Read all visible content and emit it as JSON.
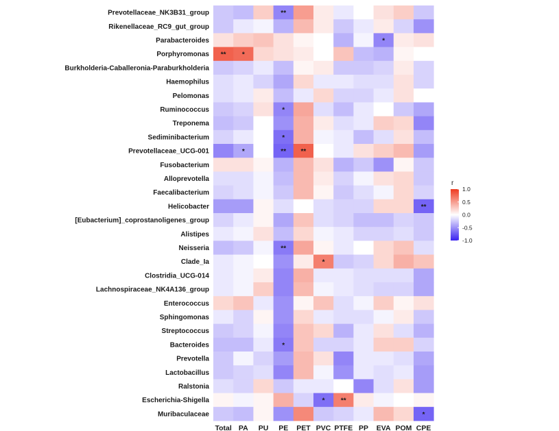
{
  "chart_data": {
    "type": "heatmap",
    "title": "",
    "legend_title": "r",
    "legend_ticks": [
      "1.0",
      "0.5",
      "0.0",
      "-0.5",
      "-1.0"
    ],
    "legend_tick_values": [
      1.0,
      0.5,
      0.0,
      -0.5,
      -1.0
    ],
    "color_range": [
      -1.0,
      1.0
    ],
    "colors": {
      "low": "#3a22f0",
      "mid": "#ffffff",
      "high": "#ee3a20"
    },
    "columns": [
      "Total",
      "PA",
      "PU",
      "PE",
      "PET",
      "PVC",
      "PTFE",
      "PP",
      "EVA",
      "POM",
      "CPE"
    ],
    "rows": [
      "Prevotellaceae_NK3B31_group",
      "Rikenellaceae_RC9_gut_group",
      "Parabacteroides",
      "Porphyromonas",
      "Burkholderia-Caballeronia-Paraburkholderia",
      "Haemophilus",
      "Pelomonas",
      "Ruminococcus",
      "Treponema",
      "Sediminibacterium",
      "Prevotellaceae_UCG-001",
      "Fusobacterium",
      "Alloprevotella",
      "Faecalibacterium",
      "Helicobacter",
      "[Eubacterium]_coprostanoligenes_group",
      "Alistipes",
      "Neisseria",
      "Clade_Ia",
      "Clostridia_UCG-014",
      "Lachnospiraceae_NK4A136_group",
      "Enterococcus",
      "Sphingomonas",
      "Streptococcus",
      "Bacteroides",
      "Prevotella",
      "Lactobacillus",
      "Ralstonia",
      "Escherichia-Shigella",
      "Muribaculaceae"
    ],
    "values": [
      [
        -0.25,
        -0.3,
        0.25,
        -0.55,
        0.5,
        0.1,
        -0.1,
        0.0,
        0.15,
        0.25,
        -0.25
      ],
      [
        -0.25,
        -0.1,
        -0.05,
        -0.35,
        0.35,
        0.1,
        -0.25,
        -0.1,
        0.1,
        -0.2,
        -0.5
      ],
      [
        0.15,
        0.25,
        0.3,
        0.15,
        0.05,
        0.0,
        -0.35,
        -0.05,
        -0.55,
        0.1,
        0.15
      ],
      [
        0.8,
        0.75,
        0.2,
        0.15,
        0.1,
        0.0,
        0.3,
        -0.3,
        -0.35,
        0.05,
        0.0
      ],
      [
        -0.25,
        -0.2,
        -0.1,
        -0.3,
        0.05,
        0.1,
        -0.25,
        -0.25,
        -0.2,
        0.1,
        -0.2
      ],
      [
        -0.15,
        -0.1,
        -0.2,
        -0.4,
        0.2,
        -0.1,
        -0.1,
        -0.15,
        -0.15,
        0.15,
        -0.2
      ],
      [
        -0.15,
        -0.1,
        0.1,
        -0.3,
        -0.1,
        0.2,
        -0.2,
        -0.2,
        -0.1,
        0.15,
        0.0
      ],
      [
        -0.25,
        -0.2,
        0.15,
        -0.55,
        0.45,
        -0.15,
        -0.3,
        -0.1,
        0.0,
        -0.25,
        -0.4
      ],
      [
        -0.3,
        -0.25,
        0.0,
        -0.5,
        0.4,
        0.1,
        -0.15,
        -0.1,
        0.25,
        0.2,
        -0.55
      ],
      [
        -0.2,
        -0.1,
        0.0,
        -0.65,
        0.4,
        -0.05,
        -0.1,
        -0.3,
        -0.15,
        0.15,
        -0.3
      ],
      [
        -0.55,
        -0.4,
        0.0,
        -0.7,
        0.8,
        0.0,
        -0.1,
        0.15,
        0.25,
        0.35,
        -0.45
      ],
      [
        0.15,
        0.15,
        0.05,
        -0.35,
        0.35,
        0.15,
        -0.35,
        -0.25,
        -0.5,
        0.05,
        -0.25
      ],
      [
        -0.15,
        -0.15,
        -0.05,
        -0.3,
        0.35,
        0.1,
        -0.2,
        -0.05,
        0.15,
        0.2,
        -0.25
      ],
      [
        -0.2,
        -0.15,
        -0.05,
        -0.25,
        0.35,
        0.05,
        -0.25,
        -0.15,
        -0.05,
        0.2,
        -0.2
      ],
      [
        -0.45,
        -0.45,
        0.05,
        -0.15,
        0.0,
        -0.15,
        -0.2,
        -0.2,
        0.2,
        0.2,
        -0.7
      ],
      [
        -0.2,
        -0.1,
        0.05,
        -0.4,
        0.3,
        -0.15,
        -0.2,
        -0.3,
        -0.3,
        -0.2,
        -0.25
      ],
      [
        -0.1,
        -0.05,
        0.15,
        -0.3,
        0.2,
        -0.05,
        -0.1,
        -0.2,
        -0.2,
        -0.15,
        -0.25
      ],
      [
        -0.3,
        -0.25,
        -0.05,
        -0.6,
        0.45,
        0.05,
        -0.1,
        0.0,
        0.2,
        0.3,
        -0.15
      ],
      [
        -0.1,
        -0.05,
        0.0,
        -0.5,
        0.1,
        0.65,
        -0.25,
        -0.2,
        0.2,
        0.4,
        0.3
      ],
      [
        -0.1,
        -0.05,
        0.1,
        -0.55,
        0.4,
        -0.1,
        -0.1,
        -0.15,
        -0.15,
        -0.15,
        -0.4
      ],
      [
        -0.1,
        -0.05,
        0.25,
        -0.55,
        0.35,
        -0.05,
        -0.1,
        -0.15,
        -0.2,
        -0.2,
        -0.4
      ],
      [
        0.2,
        0.3,
        -0.1,
        -0.5,
        0.05,
        0.3,
        -0.15,
        -0.05,
        0.25,
        0.05,
        0.15
      ],
      [
        -0.1,
        -0.2,
        0.05,
        -0.5,
        0.2,
        -0.1,
        -0.15,
        -0.15,
        -0.05,
        0.1,
        -0.25
      ],
      [
        -0.25,
        -0.2,
        -0.05,
        -0.55,
        0.3,
        0.2,
        -0.35,
        -0.1,
        0.15,
        -0.15,
        -0.35
      ],
      [
        -0.3,
        -0.3,
        -0.1,
        -0.6,
        0.3,
        -0.2,
        -0.2,
        -0.1,
        0.25,
        0.25,
        -0.2
      ],
      [
        -0.25,
        -0.05,
        -0.2,
        -0.45,
        0.35,
        0.15,
        -0.55,
        -0.1,
        -0.1,
        -0.15,
        -0.4
      ],
      [
        -0.25,
        -0.2,
        -0.15,
        -0.55,
        0.35,
        -0.05,
        -0.5,
        -0.1,
        -0.15,
        -0.1,
        -0.45
      ],
      [
        -0.15,
        -0.2,
        0.2,
        -0.25,
        -0.1,
        -0.1,
        0.0,
        -0.55,
        -0.15,
        0.15,
        -0.45
      ],
      [
        0.05,
        -0.05,
        0.05,
        0.4,
        -0.2,
        -0.65,
        0.65,
        0.1,
        -0.05,
        0.0,
        0.05
      ],
      [
        -0.25,
        -0.3,
        0.05,
        -0.5,
        0.6,
        -0.25,
        -0.2,
        -0.1,
        0.35,
        0.2,
        -0.7
      ]
    ],
    "significance": [
      [
        "",
        "",
        "",
        "**",
        "",
        "",
        "",
        "",
        "",
        "",
        ""
      ],
      [
        "",
        "",
        "",
        "",
        "",
        "",
        "",
        "",
        "",
        "",
        ""
      ],
      [
        "",
        "",
        "",
        "",
        "",
        "",
        "",
        "",
        "*",
        "",
        ""
      ],
      [
        "**",
        "*",
        "",
        "",
        "",
        "",
        "",
        "",
        "",
        "",
        ""
      ],
      [
        "",
        "",
        "",
        "",
        "",
        "",
        "",
        "",
        "",
        "",
        ""
      ],
      [
        "",
        "",
        "",
        "",
        "",
        "",
        "",
        "",
        "",
        "",
        ""
      ],
      [
        "",
        "",
        "",
        "",
        "",
        "",
        "",
        "",
        "",
        "",
        ""
      ],
      [
        "",
        "",
        "",
        "*",
        "",
        "",
        "",
        "",
        "",
        "",
        ""
      ],
      [
        "",
        "",
        "",
        "",
        "",
        "",
        "",
        "",
        "",
        "",
        ""
      ],
      [
        "",
        "",
        "",
        "*",
        "",
        "",
        "",
        "",
        "",
        "",
        ""
      ],
      [
        "",
        "*",
        "",
        "**",
        "**",
        "",
        "",
        "",
        "",
        "",
        ""
      ],
      [
        "",
        "",
        "",
        "",
        "",
        "",
        "",
        "",
        "",
        "",
        ""
      ],
      [
        "",
        "",
        "",
        "",
        "",
        "",
        "",
        "",
        "",
        "",
        ""
      ],
      [
        "",
        "",
        "",
        "",
        "",
        "",
        "",
        "",
        "",
        "",
        ""
      ],
      [
        "",
        "",
        "",
        "",
        "",
        "",
        "",
        "",
        "",
        "",
        "**"
      ],
      [
        "",
        "",
        "",
        "",
        "",
        "",
        "",
        "",
        "",
        "",
        ""
      ],
      [
        "",
        "",
        "",
        "",
        "",
        "",
        "",
        "",
        "",
        "",
        ""
      ],
      [
        "",
        "",
        "",
        "**",
        "",
        "",
        "",
        "",
        "",
        "",
        ""
      ],
      [
        "",
        "",
        "",
        "",
        "",
        "*",
        "",
        "",
        "",
        "",
        ""
      ],
      [
        "",
        "",
        "",
        "",
        "",
        "",
        "",
        "",
        "",
        "",
        ""
      ],
      [
        "",
        "",
        "",
        "",
        "",
        "",
        "",
        "",
        "",
        "",
        ""
      ],
      [
        "",
        "",
        "",
        "",
        "",
        "",
        "",
        "",
        "",
        "",
        ""
      ],
      [
        "",
        "",
        "",
        "",
        "",
        "",
        "",
        "",
        "",
        "",
        ""
      ],
      [
        "",
        "",
        "",
        "",
        "",
        "",
        "",
        "",
        "",
        "",
        ""
      ],
      [
        "",
        "",
        "",
        "*",
        "",
        "",
        "",
        "",
        "",
        "",
        ""
      ],
      [
        "",
        "",
        "",
        "",
        "",
        "",
        "",
        "",
        "",
        "",
        ""
      ],
      [
        "",
        "",
        "",
        "",
        "",
        "",
        "",
        "",
        "",
        "",
        ""
      ],
      [
        "",
        "",
        "",
        "",
        "",
        "",
        "",
        "",
        "",
        "",
        ""
      ],
      [
        "",
        "",
        "",
        "",
        "",
        "*",
        "**",
        "",
        "",
        "",
        ""
      ],
      [
        "",
        "",
        "",
        "",
        "",
        "",
        "",
        "",
        "",
        "",
        "*"
      ]
    ]
  }
}
